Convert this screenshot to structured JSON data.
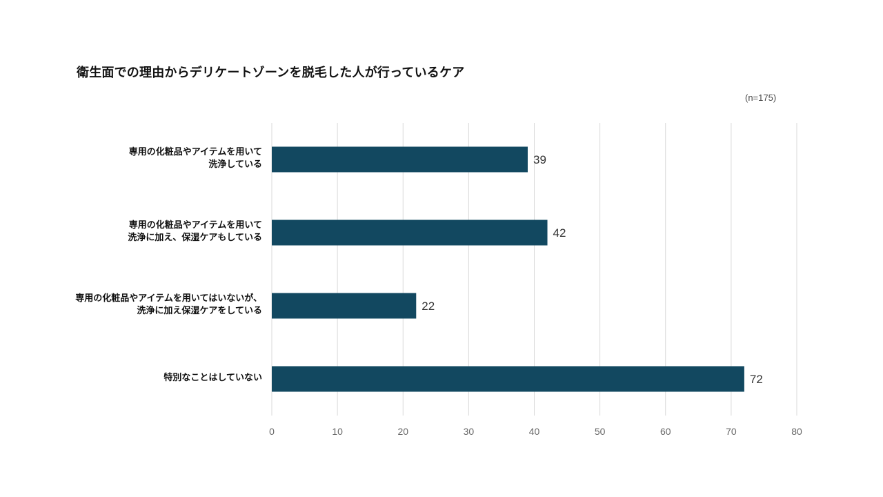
{
  "chart_data": {
    "type": "bar",
    "orientation": "horizontal",
    "title": "衛生面での理由からデリケートゾーンを脱毛した人が行っているケア",
    "note": "(n=175)",
    "categories": [
      [
        "専用の化粧品やアイテムを用いて",
        "洗浄している"
      ],
      [
        "専用の化粧品やアイテムを用いて",
        "洗浄に加え、保湿ケアもしている"
      ],
      [
        "専用の化粧品やアイテムを用いてはいないが、",
        "洗浄に加え保湿ケアをしている"
      ],
      [
        "特別なことはしていない"
      ]
    ],
    "values": [
      39,
      42,
      22,
      72
    ],
    "xlim": [
      0,
      80
    ],
    "xticks": [
      0,
      10,
      20,
      30,
      40,
      50,
      60,
      70,
      80
    ],
    "grid": true,
    "legend": "none",
    "bar_color": "#124860",
    "grid_color": "#d9d9d9"
  }
}
